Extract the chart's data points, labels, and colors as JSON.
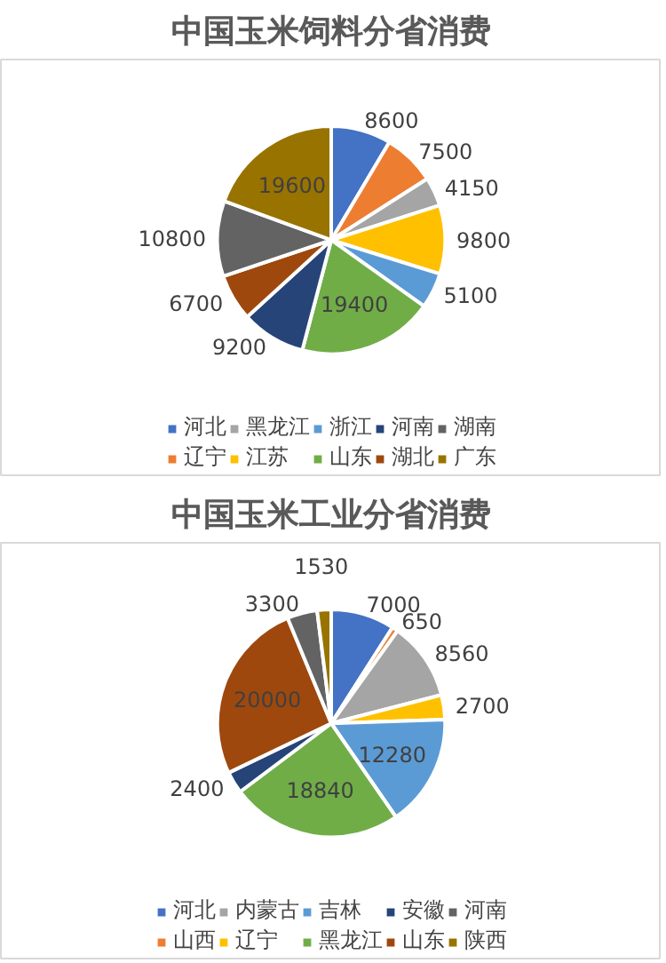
{
  "chart_data": [
    {
      "type": "pie",
      "title": "中国玉米饲料分省消费",
      "categories": [
        "河北",
        "辽宁",
        "黑龙江",
        "江苏",
        "浙江",
        "山东",
        "河南",
        "湖北",
        "湖南",
        "广东"
      ],
      "values": [
        8600,
        7500,
        4150,
        9800,
        5100,
        19400,
        9200,
        6700,
        10800,
        19600
      ],
      "colors": [
        "#4472c4",
        "#ed7d31",
        "#a5a5a5",
        "#ffc000",
        "#5b9bd5",
        "#70ad47",
        "#264478",
        "#9e480e",
        "#636363",
        "#997300"
      ],
      "data_labels": true,
      "legend": "bottom"
    },
    {
      "type": "pie",
      "title": "中国玉米工业分省消费",
      "categories": [
        "河北",
        "山西",
        "内蒙古",
        "辽宁",
        "吉林",
        "黑龙江",
        "安徽",
        "山东",
        "河南",
        "陕西"
      ],
      "values": [
        7000,
        650,
        8560,
        2700,
        12280,
        18840,
        2400,
        20000,
        3300,
        1530
      ],
      "colors": [
        "#4472c4",
        "#ed7d31",
        "#a5a5a5",
        "#ffc000",
        "#5b9bd5",
        "#70ad47",
        "#264478",
        "#9e480e",
        "#636363",
        "#997300"
      ],
      "data_labels": true,
      "legend": "bottom"
    }
  ]
}
